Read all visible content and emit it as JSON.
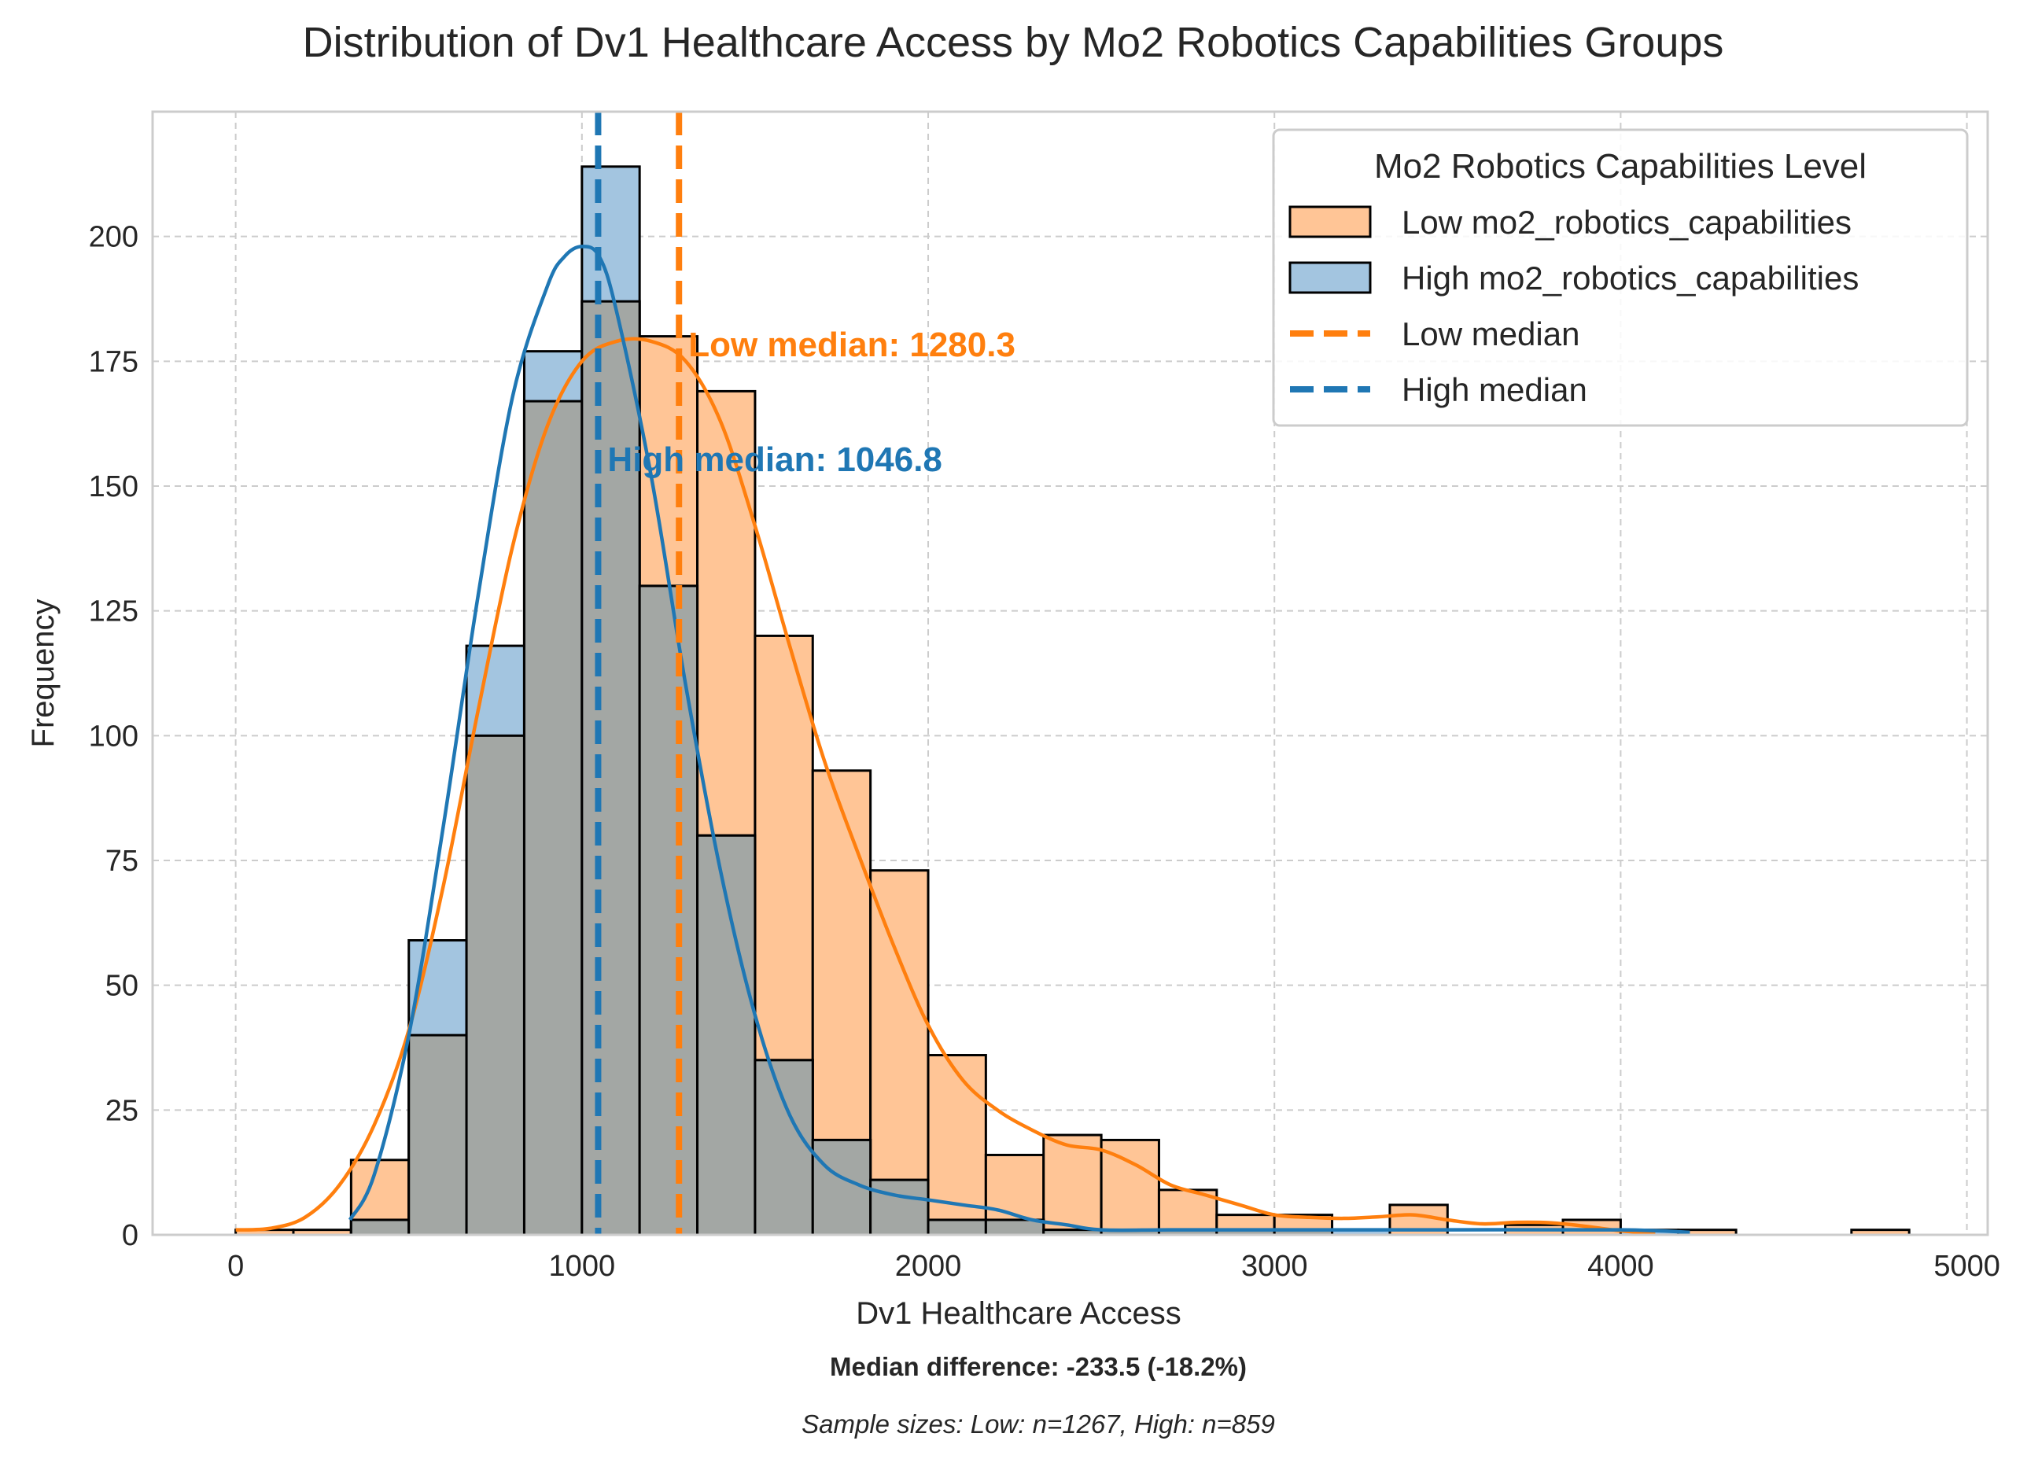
{
  "chart_data": {
    "type": "histogram",
    "title": "Distribution of Dv1 Healthcare Access by Mo2 Robotics Capabilities Groups",
    "xlabel": "Dv1 Healthcare Access",
    "ylabel": "Frequency",
    "xlim": [
      -240,
      5060
    ],
    "ylim": [
      0,
      225
    ],
    "xticks": [
      0,
      1000,
      2000,
      3000,
      4000,
      5000
    ],
    "xtick_labels": [
      "0",
      "1000",
      "2000",
      "3000",
      "4000",
      "5000"
    ],
    "yticks": [
      0,
      25,
      50,
      75,
      100,
      125,
      150,
      175,
      200
    ],
    "ytick_labels": [
      "0",
      "25",
      "50",
      "75",
      "100",
      "125",
      "150",
      "175",
      "200"
    ],
    "grid": true,
    "bin_edges": [
      0,
      166.6,
      333.3,
      500,
      666.6,
      833.3,
      1000,
      1166.6,
      1333.3,
      1500,
      1666.6,
      1833.3,
      2000,
      2166.6,
      2333.3,
      2500,
      2666.6,
      2833.3,
      3000,
      3166.6,
      3333.3,
      3500,
      3666.6,
      3833.3,
      4000,
      4166.6,
      4333.3,
      4500,
      4666.6,
      4833.3
    ],
    "series": [
      {
        "name": "Low mo2_robotics_capabilities",
        "color": "#ff7f0e",
        "fill": "#ffc596",
        "counts": [
          1,
          1,
          15,
          40,
          100,
          167,
          187,
          180,
          169,
          120,
          93,
          73,
          36,
          16,
          20,
          19,
          9,
          4,
          4,
          0,
          6,
          0,
          2,
          3,
          0,
          1,
          0,
          0,
          1
        ],
        "kde_x": [
          0,
          100,
          200,
          300,
          400,
          500,
          600,
          700,
          800,
          900,
          1000,
          1100,
          1200,
          1300,
          1400,
          1500,
          1600,
          1700,
          1800,
          1900,
          2000,
          2100,
          2200,
          2300,
          2400,
          2500,
          2600,
          2700,
          2800,
          2900,
          3000,
          3100,
          3200,
          3300,
          3400,
          3500,
          3600,
          3700,
          3800,
          3900,
          4000,
          4100
        ],
        "kde_y": [
          1,
          1.3,
          3.5,
          10,
          22,
          41,
          70,
          105,
          138,
          162,
          175,
          179,
          179,
          175,
          163,
          142,
          118,
          95,
          76,
          58,
          42,
          31,
          25,
          21,
          18,
          17,
          14,
          10,
          8,
          6,
          4,
          3.5,
          3.3,
          3.6,
          4,
          3,
          2.2,
          2.5,
          2.4,
          1.7,
          0.8,
          0.3
        ]
      },
      {
        "name": "High mo2_robotics_capabilities",
        "color": "#1f77b4",
        "fill": "#a3c5e0",
        "counts": [
          0,
          0,
          3,
          59,
          118,
          177,
          214,
          130,
          80,
          35,
          19,
          11,
          3,
          3,
          1,
          1,
          1,
          1,
          1,
          1,
          0,
          0,
          0,
          0,
          1,
          0,
          0,
          0,
          0
        ],
        "kde_x": [
          330,
          400,
          500,
          600,
          700,
          800,
          900,
          950,
          1000,
          1050,
          1100,
          1200,
          1300,
          1400,
          1500,
          1600,
          1700,
          1800,
          1900,
          2000,
          2100,
          2200,
          2300,
          2400,
          2500,
          2700,
          3000,
          3500,
          4000,
          4200
        ],
        "kde_y": [
          3,
          12,
          40,
          82,
          128,
          168,
          190,
          196,
          198,
          196,
          185,
          152,
          110,
          73,
          44,
          24,
          14,
          10,
          8,
          7,
          6,
          5,
          3,
          2,
          1,
          1,
          1,
          1,
          1,
          0.5
        ]
      }
    ],
    "overlap_fill": "#a3a7a4",
    "medians": [
      {
        "name": "Low median",
        "value": 1280.3,
        "color": "#ff7f0e",
        "label": "Low median: 1280.3",
        "label_y": 176
      },
      {
        "name": "High median",
        "value": 1046.8,
        "color": "#1f77b4",
        "label": "High median: 1046.8",
        "label_y": 153
      }
    ],
    "legend": {
      "title": "Mo2 Robotics Capabilities Level",
      "location": "top-right",
      "entries": [
        {
          "label": "Low mo2_robotics_capabilities",
          "kind": "patch",
          "fill": "#ffc596"
        },
        {
          "label": "High mo2_robotics_capabilities",
          "kind": "patch",
          "fill": "#a3c5e0"
        },
        {
          "label": "Low median",
          "kind": "dashed-line",
          "color": "#ff7f0e"
        },
        {
          "label": "High median",
          "kind": "dashed-line",
          "color": "#1f77b4"
        }
      ]
    },
    "footer": {
      "median_difference": "Median difference: -233.5 (-18.2%)",
      "sample_sizes": "Sample sizes: Low: n=1267, High: n=859"
    }
  }
}
